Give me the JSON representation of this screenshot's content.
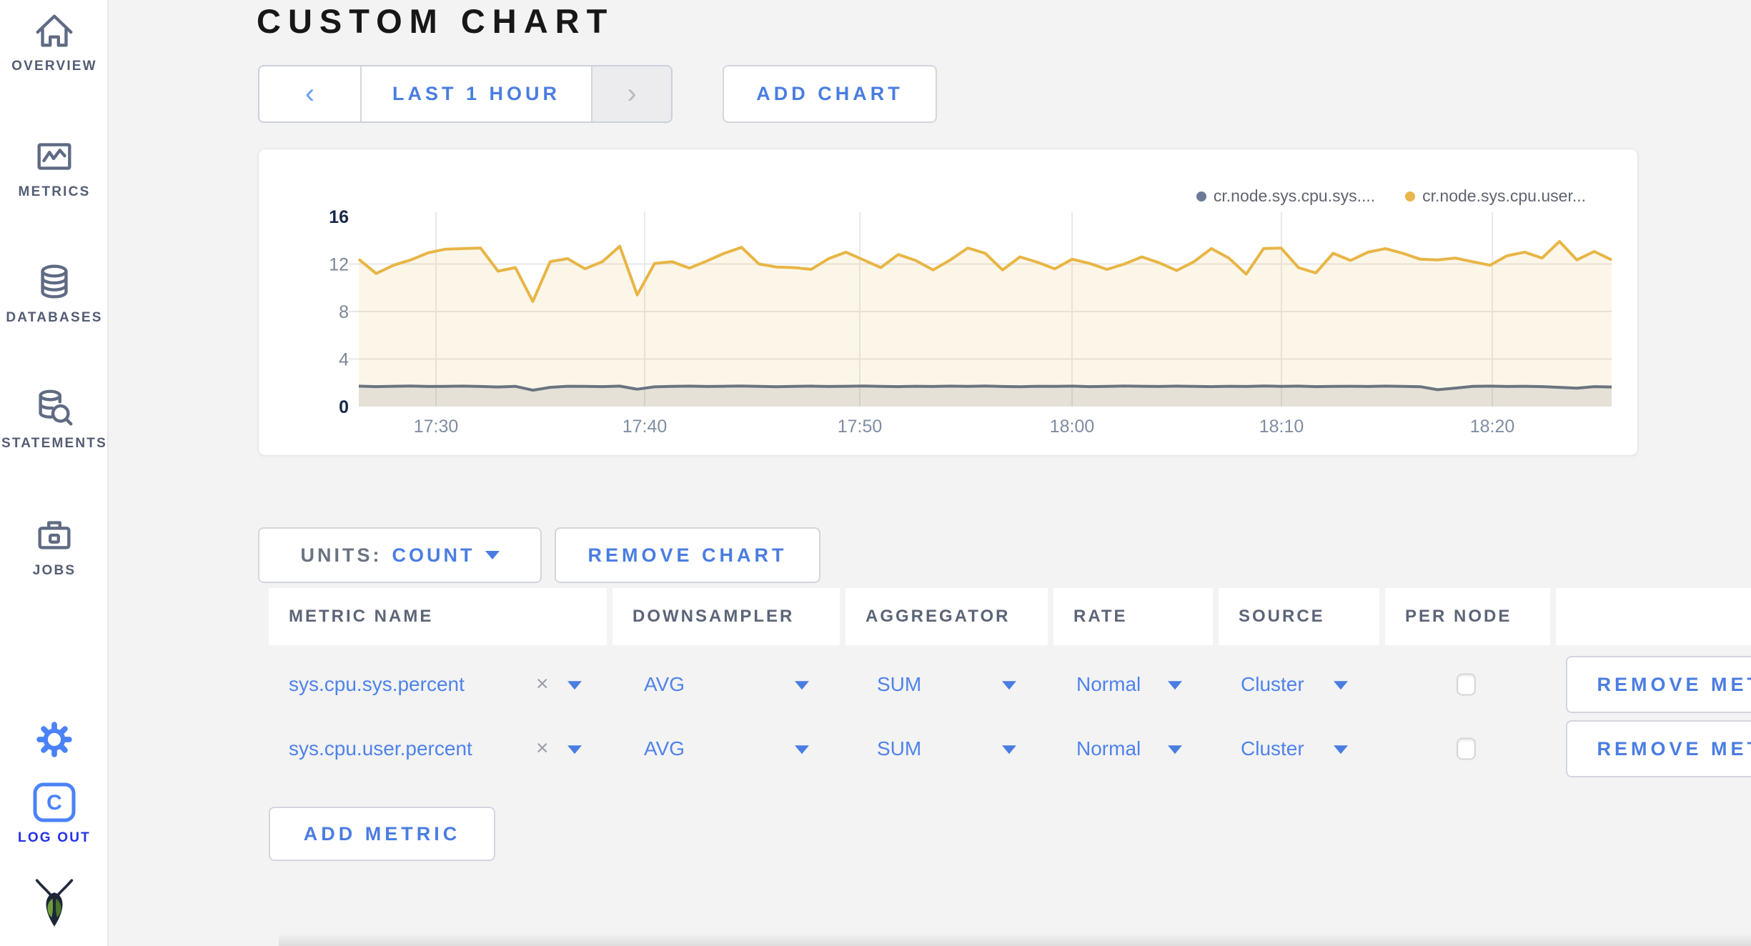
{
  "page": {
    "title": "CUSTOM CHART"
  },
  "colors": {
    "accent_blue": "#4a7de1",
    "logout_blue": "#2230e8",
    "sidebar_icon": "#5f6b83",
    "series_sys": "#6b7380",
    "series_user": "#e8b545"
  },
  "sidebar": {
    "items": [
      {
        "label": "OVERVIEW",
        "icon": "home-icon"
      },
      {
        "label": "METRICS",
        "icon": "metrics-icon"
      },
      {
        "label": "DATABASES",
        "icon": "database-icon"
      },
      {
        "label": "STATEMENTS",
        "icon": "statements-icon"
      },
      {
        "label": "JOBS",
        "icon": "jobs-icon"
      }
    ],
    "logout_label": "LOG OUT"
  },
  "toolbar": {
    "prev_label": "‹",
    "time_range": "LAST 1 HOUR",
    "next_label": "›",
    "add_chart": "ADD CHART"
  },
  "chart_data": {
    "type": "area",
    "title": "",
    "x_ticks": [
      "17:30",
      "17:40",
      "17:50",
      "18:00",
      "18:10",
      "18:20"
    ],
    "y_ticks": [
      0,
      4,
      8,
      12,
      16
    ],
    "ylim": [
      0,
      16
    ],
    "grid": true,
    "legend_position": "top-right",
    "series": [
      {
        "name": "cr.node.sys.cpu.sys....",
        "color": "#6b7380",
        "dot_color": "#6c7a96",
        "fill": "rgba(110,118,132,0.16)",
        "values": [
          1.72,
          1.68,
          1.71,
          1.73,
          1.69,
          1.7,
          1.72,
          1.69,
          1.65,
          1.7,
          1.38,
          1.62,
          1.71,
          1.7,
          1.68,
          1.72,
          1.46,
          1.66,
          1.7,
          1.72,
          1.69,
          1.71,
          1.73,
          1.7,
          1.67,
          1.7,
          1.72,
          1.69,
          1.71,
          1.73,
          1.7,
          1.68,
          1.71,
          1.69,
          1.72,
          1.7,
          1.73,
          1.69,
          1.67,
          1.71,
          1.7,
          1.72,
          1.68,
          1.7,
          1.73,
          1.71,
          1.69,
          1.72,
          1.7,
          1.68,
          1.71,
          1.69,
          1.73,
          1.7,
          1.72,
          1.68,
          1.7,
          1.71,
          1.69,
          1.72,
          1.7,
          1.67,
          1.42,
          1.55,
          1.7,
          1.72,
          1.69,
          1.71,
          1.68,
          1.62,
          1.55,
          1.68,
          1.65
        ]
      },
      {
        "name": "cr.node.sys.cpu.user...",
        "color": "#e8b545",
        "dot_color": "#eab64e",
        "fill": "rgba(235,185,75,0.13)",
        "values": [
          12.4,
          11.2,
          11.9,
          12.35,
          12.95,
          13.25,
          13.3,
          13.35,
          11.4,
          11.7,
          8.85,
          12.2,
          12.45,
          11.6,
          12.2,
          13.5,
          9.4,
          12.05,
          12.2,
          11.65,
          12.25,
          12.9,
          13.4,
          12.0,
          11.75,
          11.7,
          11.55,
          12.45,
          13.0,
          12.35,
          11.7,
          12.8,
          12.3,
          11.5,
          12.35,
          13.35,
          12.9,
          11.5,
          12.6,
          12.15,
          11.6,
          12.4,
          12.05,
          11.55,
          12.0,
          12.6,
          12.1,
          11.45,
          12.2,
          13.3,
          12.5,
          11.15,
          13.3,
          13.35,
          11.7,
          11.25,
          12.9,
          12.3,
          13.0,
          13.3,
          12.9,
          12.4,
          12.35,
          12.5,
          12.2,
          11.9,
          12.7,
          13.0,
          12.5,
          13.9,
          12.35,
          13.05,
          12.35
        ]
      }
    ]
  },
  "units": {
    "label": "UNITS:",
    "value": "COUNT"
  },
  "remove_chart_label": "REMOVE CHART",
  "table": {
    "headers": [
      "METRIC NAME",
      "DOWNSAMPLER",
      "AGGREGATOR",
      "RATE",
      "SOURCE",
      "PER NODE",
      ""
    ],
    "rows": [
      {
        "metric": "sys.cpu.sys.percent",
        "clear": "×",
        "downsampler": "AVG",
        "aggregator": "SUM",
        "rate": "Normal",
        "source": "Cluster",
        "per_node_checked": false,
        "remove_label": "REMOVE METRIC"
      },
      {
        "metric": "sys.cpu.user.percent",
        "clear": "×",
        "downsampler": "AVG",
        "aggregator": "SUM",
        "rate": "Normal",
        "source": "Cluster",
        "per_node_checked": false,
        "remove_label": "REMOVE METRIC"
      }
    ]
  },
  "add_metric_label": "ADD METRIC"
}
